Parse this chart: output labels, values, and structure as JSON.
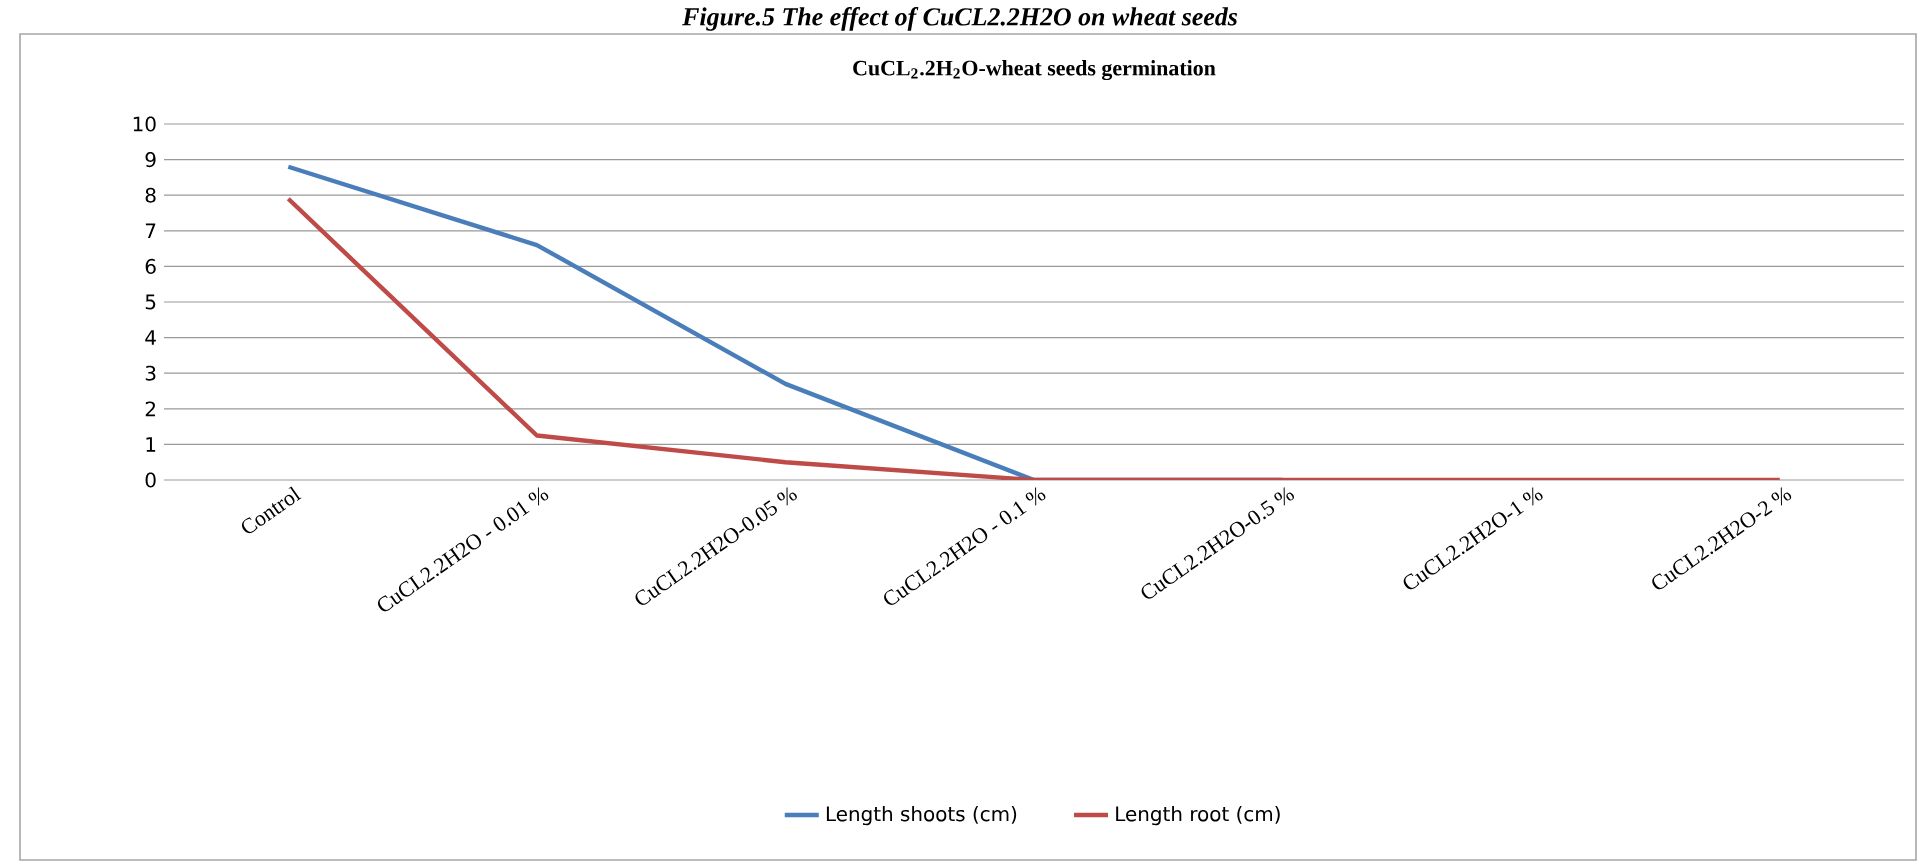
{
  "chart_data": {
    "type": "line",
    "title": "CuCL$_{2}$.2H$_{2}$O-wheat seeds germination",
    "annotations": [
      "Figure.5 The effect of CuCL2.2H2O on wheat seeds"
    ],
    "categories": [
      "Control",
      "CuCL2.2H2O - 0.01 %",
      "CuCL2.2H2O-0.05 %",
      "CuCL2.2H2O - 0.1 %",
      "CuCL2.2H2O-0.5 %",
      "CuCL2.2H2O-1 %",
      "CuCL2.2H2O-2 %"
    ],
    "series": [
      {
        "name": "Length shoots (cm)",
        "color": "#4a7ebb",
        "values": [
          8.8,
          6.6,
          2.7,
          0,
          0,
          null,
          null
        ]
      },
      {
        "name": "Length root (cm)",
        "color": "#be4b48",
        "values": [
          7.9,
          1.25,
          0.5,
          0,
          0,
          0,
          0
        ]
      }
    ],
    "ylim": [
      0,
      10
    ],
    "yticks": [
      0,
      1,
      2,
      3,
      4,
      5,
      6,
      7,
      8,
      9,
      10
    ],
    "grid": "y",
    "legend": "bottom",
    "marker": "none",
    "line_style": "solid"
  }
}
